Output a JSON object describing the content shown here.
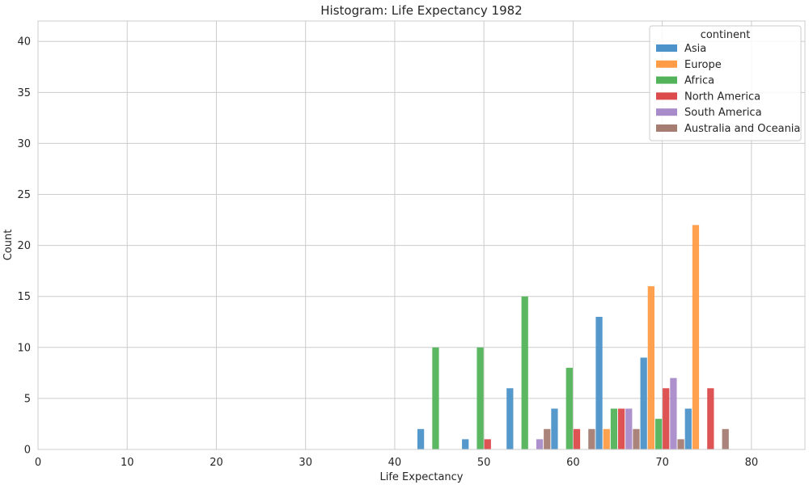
{
  "chart_data": {
    "type": "bar",
    "title": "Histogram: Life Expectancy 1982",
    "xlabel": "Life Expectancy",
    "ylabel": "Count",
    "xlim": [
      0,
      86
    ],
    "ylim": [
      0,
      42
    ],
    "xticks": [
      0,
      10,
      20,
      30,
      40,
      50,
      60,
      70,
      80
    ],
    "yticks": [
      0,
      5,
      10,
      15,
      20,
      25,
      30,
      35,
      40
    ],
    "grid": true,
    "legend_title": "continent",
    "legend_position": "top-right",
    "bin_edges": [
      42.5,
      47.5,
      52.5,
      57.5,
      62.5,
      67.5,
      72.5,
      77.5
    ],
    "series": [
      {
        "name": "Asia",
        "color": "#4c93c9",
        "values": [
          2,
          1,
          6,
          4,
          13,
          9,
          4
        ]
      },
      {
        "name": "Europe",
        "color": "#ff9c45",
        "values": [
          0,
          0,
          0,
          0,
          2,
          16,
          22
        ]
      },
      {
        "name": "Africa",
        "color": "#53b35a",
        "values": [
          10,
          10,
          15,
          8,
          4,
          3,
          0
        ]
      },
      {
        "name": "North America",
        "color": "#dc4b4c",
        "values": [
          0,
          1,
          0,
          2,
          4,
          6,
          6
        ]
      },
      {
        "name": "South America",
        "color": "#a88bca",
        "values": [
          0,
          0,
          1,
          0,
          4,
          7,
          0
        ]
      },
      {
        "name": "Australia and Oceania",
        "color": "#a57d73",
        "values": [
          0,
          0,
          2,
          2,
          2,
          1,
          2
        ]
      }
    ]
  }
}
